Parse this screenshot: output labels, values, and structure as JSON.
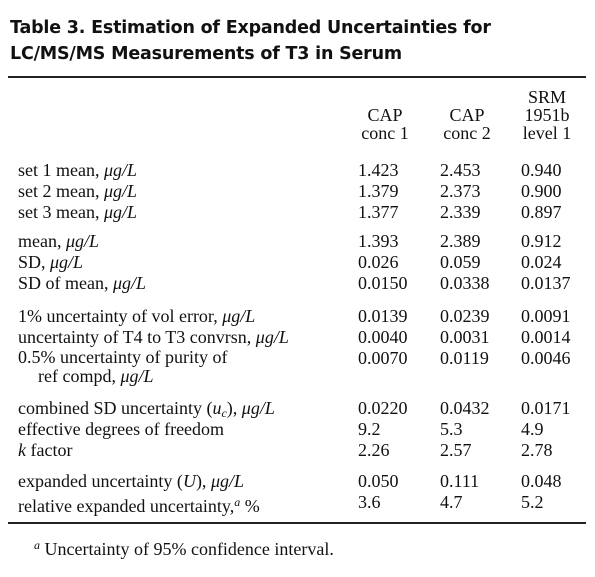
{
  "title": {
    "lines": [
      "Table 3. Estimation of Expanded Uncertainties for",
      "LC/MS/MS Measurements of T3 in Serum"
    ]
  },
  "table": {
    "columns": [
      [
        "CAP",
        "conc 1"
      ],
      [
        "CAP",
        "conc 2"
      ],
      [
        "SRM",
        "1951b",
        "level 1"
      ]
    ],
    "groups": [
      {
        "rows": [
          {
            "label": [
              {
                "text": "set 1 mean, "
              },
              {
                "text": "μg/L",
                "style": "italic"
              }
            ],
            "values": [
              "1.423",
              "2.453",
              "0.940"
            ]
          },
          {
            "label": [
              {
                "text": "set 2 mean, "
              },
              {
                "text": "μg/L",
                "style": "italic"
              }
            ],
            "values": [
              "1.379",
              "2.373",
              "0.900"
            ]
          },
          {
            "label": [
              {
                "text": "set 3 mean, "
              },
              {
                "text": "μg/L",
                "style": "italic"
              }
            ],
            "values": [
              "1.377",
              "2.339",
              "0.897"
            ]
          }
        ]
      },
      {
        "rows": [
          {
            "label": [
              {
                "text": "mean, "
              },
              {
                "text": "μg/L",
                "style": "italic"
              }
            ],
            "values": [
              "1.393",
              "2.389",
              "0.912"
            ]
          },
          {
            "label": [
              {
                "text": "SD, "
              },
              {
                "text": "μg/L",
                "style": "italic"
              }
            ],
            "values": [
              "0.026",
              "0.059",
              "0.024"
            ]
          },
          {
            "label": [
              {
                "text": "SD of mean, "
              },
              {
                "text": "μg/L",
                "style": "italic"
              }
            ],
            "values": [
              "0.0150",
              "0.0338",
              "0.0137"
            ]
          }
        ]
      },
      {
        "rows": [
          {
            "label": [
              {
                "text": "1% uncertainty of vol error, "
              },
              {
                "text": "μg/L",
                "style": "italic"
              }
            ],
            "values": [
              "0.0139",
              "0.0239",
              "0.0091"
            ]
          },
          {
            "label": [
              {
                "text": "uncertainty of T4 to T3 convrsn, "
              },
              {
                "text": "μg/L",
                "style": "italic"
              }
            ],
            "values": [
              "0.0040",
              "0.0031",
              "0.0014"
            ]
          },
          {
            "label": [
              {
                "text": "0.5% uncertainty of purity of"
              },
              {
                "text": "ref compd, ",
                "break_before": true
              },
              {
                "text": "μg/L",
                "style": "italic"
              }
            ],
            "values": [
              "0.0070",
              "0.0119",
              "0.0046"
            ]
          }
        ]
      },
      {
        "rows": [
          {
            "label": [
              {
                "text": "combined SD uncertainty ("
              },
              {
                "text": "u",
                "style": "italic"
              },
              {
                "text": "c",
                "style": "sub"
              },
              {
                "text": "), "
              },
              {
                "text": "μg/L",
                "style": "italic"
              }
            ],
            "values": [
              "0.0220",
              "0.0432",
              "0.0171"
            ]
          },
          {
            "label": [
              {
                "text": "effective degrees of freedom"
              }
            ],
            "values": [
              "9.2",
              "5.3",
              "4.9"
            ]
          },
          {
            "label": [
              {
                "text": "k",
                "style": "italic"
              },
              {
                "text": " factor"
              }
            ],
            "values": [
              "2.26",
              "2.57",
              "2.78"
            ]
          }
        ]
      },
      {
        "rows": [
          {
            "label": [
              {
                "text": "expanded uncertainty ("
              },
              {
                "text": "U",
                "style": "italic"
              },
              {
                "text": "), "
              },
              {
                "text": "μg/L",
                "style": "italic"
              }
            ],
            "values": [
              "0.050",
              "0.111",
              "0.048"
            ]
          },
          {
            "label": [
              {
                "text": "relative expanded uncertainty,"
              },
              {
                "text": "a",
                "style": "sup"
              },
              {
                "text": " %"
              }
            ],
            "values": [
              "3.6",
              "4.7",
              "5.2"
            ]
          }
        ]
      }
    ]
  },
  "footnote": [
    {
      "text": "a",
      "style": "sup"
    },
    {
      "text": " Uncertainty of 95% confidence interval."
    }
  ]
}
